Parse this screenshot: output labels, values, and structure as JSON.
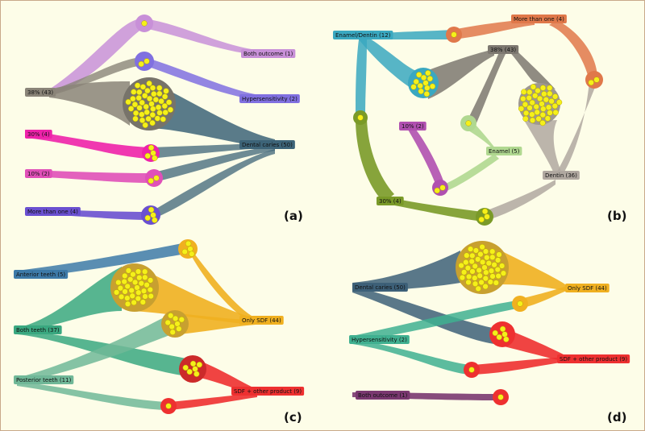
{
  "figure": {
    "panels": [
      {
        "id": "a",
        "tag": "(a)",
        "nodes": [
          {
            "key": "both",
            "label": "Both outcome (1)",
            "color": "#c890d8"
          },
          {
            "key": "hyper",
            "label": "Hypersensitivity (2)",
            "color": "#8070e0"
          },
          {
            "key": "p38",
            "label": "38% (43)",
            "color": "#8a8478"
          },
          {
            "key": "p30",
            "label": "30% (4)",
            "color": "#ee22aa"
          },
          {
            "key": "caries",
            "label": "Dental caries (50)",
            "color": "#3d6478"
          },
          {
            "key": "p10",
            "label": "10% (2)",
            "color": "#e050b8"
          },
          {
            "key": "more",
            "label": "More than one (4)",
            "color": "#6a50d0"
          }
        ]
      },
      {
        "id": "b",
        "tag": "(b)",
        "nodes": [
          {
            "key": "more",
            "label": "More than one (4)",
            "color": "#e0784a"
          },
          {
            "key": "ed",
            "label": "Enamel/Dentin (12)",
            "color": "#3aa8c0"
          },
          {
            "key": "p38",
            "label": "38% (43)",
            "color": "#7d7870"
          },
          {
            "key": "p10",
            "label": "10% (2)",
            "color": "#b050b0"
          },
          {
            "key": "enamel",
            "label": "Enamel (5)",
            "color": "#b0d890"
          },
          {
            "key": "dentin",
            "label": "Dentin (36)",
            "color": "#b0a8a0"
          },
          {
            "key": "p30",
            "label": "30% (4)",
            "color": "#7a9a28"
          }
        ]
      },
      {
        "id": "c",
        "tag": "(c)",
        "nodes": [
          {
            "key": "ant",
            "label": "Anterior teeth (5)",
            "color": "#3d7aa8"
          },
          {
            "key": "both",
            "label": "Both teeth (37)",
            "color": "#3aa880"
          },
          {
            "key": "only",
            "label": "Only SDF (44)",
            "color": "#f0b020"
          },
          {
            "key": "post",
            "label": "Posterior teeth (11)",
            "color": "#70b898"
          },
          {
            "key": "sdf",
            "label": "SDF + other product (9)",
            "color": "#ee3030"
          }
        ]
      },
      {
        "id": "d",
        "tag": "(d)",
        "nodes": [
          {
            "key": "caries",
            "label": "Dental caries (50)",
            "color": "#3d6078"
          },
          {
            "key": "only",
            "label": "Only SDF (44)",
            "color": "#f0b020"
          },
          {
            "key": "hyper",
            "label": "Hypersensitivity (2)",
            "color": "#40b090"
          },
          {
            "key": "sdf",
            "label": "SDF + other product (9)",
            "color": "#ee3030"
          },
          {
            "key": "both",
            "label": "Both outcome (1)",
            "color": "#7a3870"
          }
        ]
      }
    ]
  }
}
